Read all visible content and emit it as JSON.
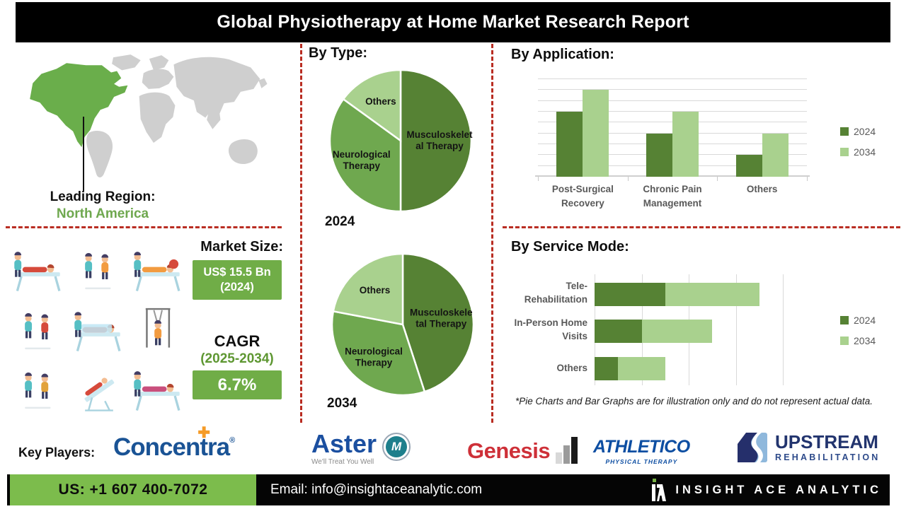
{
  "header": {
    "title": "Global Physiotherapy at Home Market Research Report"
  },
  "leading_region": {
    "label": "Leading Region:",
    "value": "North America"
  },
  "market": {
    "size_label": "Market Size:",
    "size_value": "US$ 15.5 Bn",
    "size_year": "(2024)",
    "cagr_label": "CAGR",
    "cagr_period": "(2025-2034)",
    "cagr_value": "6.7%"
  },
  "sections": {
    "by_type": "By Type:",
    "by_application": "By Application:",
    "by_service_mode": "By Service Mode:"
  },
  "footnote": "*Pie Charts and Bar Graphs are for illustration only and do not represent actual data.",
  "key_players": {
    "label": "Key Players:",
    "concentra": {
      "pre": "Concen",
      "t": "t",
      "post": "ra",
      "plus": "✚",
      "reg": "®"
    },
    "aster": {
      "word": "Aster",
      "tagline": "We'll Treat You Well",
      "badge_letter": "M"
    },
    "genesis": {
      "word": "Genesis"
    },
    "athletico": {
      "word": "ATHLETICO",
      "sub": "PHYSICAL THERAPY"
    },
    "upstream": {
      "word": "UPSTREAM",
      "sub": "REHABILITATION"
    }
  },
  "footer": {
    "phone": "US: +1 607 400-7072",
    "email": "Email: info@insightaceanalytic.com",
    "brand": "INSIGHT ACE ANALYTIC"
  },
  "colors": {
    "series_2024": "#568234",
    "series_2034": "#A9D18E",
    "mid_green": "#6FA84F",
    "accent_green": "#70AD47",
    "footer_green": "#7CBC4C",
    "map_green": "#6AAE4B",
    "map_gray": "#CFCFCF",
    "dash_red": "#B92D22",
    "gray_text": "#595959"
  },
  "chart_data": [
    {
      "type": "pie",
      "id": "pie-2024",
      "year_label": "2024",
      "slices": [
        {
          "label": "Musculoskelet\nal Therapy",
          "value": 50,
          "color": "#568234"
        },
        {
          "label": "Neurological\nTherapy",
          "value": 35,
          "color": "#6FA84F"
        },
        {
          "label": "Others",
          "value": 15,
          "color": "#A9D18E"
        }
      ]
    },
    {
      "type": "pie",
      "id": "pie-2034",
      "year_label": "2034",
      "slices": [
        {
          "label": "Musculoskele\ntal Therapy",
          "value": 45,
          "color": "#568234"
        },
        {
          "label": "Neurological\nTherapy",
          "value": 33,
          "color": "#6FA84F"
        },
        {
          "label": "Others",
          "value": 22,
          "color": "#A9D18E"
        }
      ]
    },
    {
      "type": "bar",
      "id": "by-application",
      "title": "By Application:",
      "categories": [
        "Post-Surgical\nRecovery",
        "Chronic Pain\nManagement",
        "Others"
      ],
      "series": [
        {
          "name": "2024",
          "color": "#568234",
          "values": [
            6,
            4,
            2
          ]
        },
        {
          "name": "2034",
          "color": "#A9D18E",
          "values": [
            8,
            6,
            4
          ]
        }
      ],
      "ylim": [
        0,
        9
      ],
      "gridlines": 9,
      "legend_position": "right"
    },
    {
      "type": "stacked-bar-horizontal",
      "id": "by-service-mode",
      "title": "By Service Mode:",
      "categories": [
        "Tele-\nRehabilitation",
        "In-Person Home\nVisits",
        "Others"
      ],
      "series": [
        {
          "name": "2024",
          "color": "#568234",
          "values": [
            1.5,
            1.0,
            0.5
          ]
        },
        {
          "name": "2034",
          "color": "#A9D18E",
          "values": [
            2.0,
            1.5,
            1.0
          ]
        }
      ],
      "xlim": [
        0,
        4
      ],
      "gridlines": 4,
      "legend_position": "right"
    }
  ]
}
